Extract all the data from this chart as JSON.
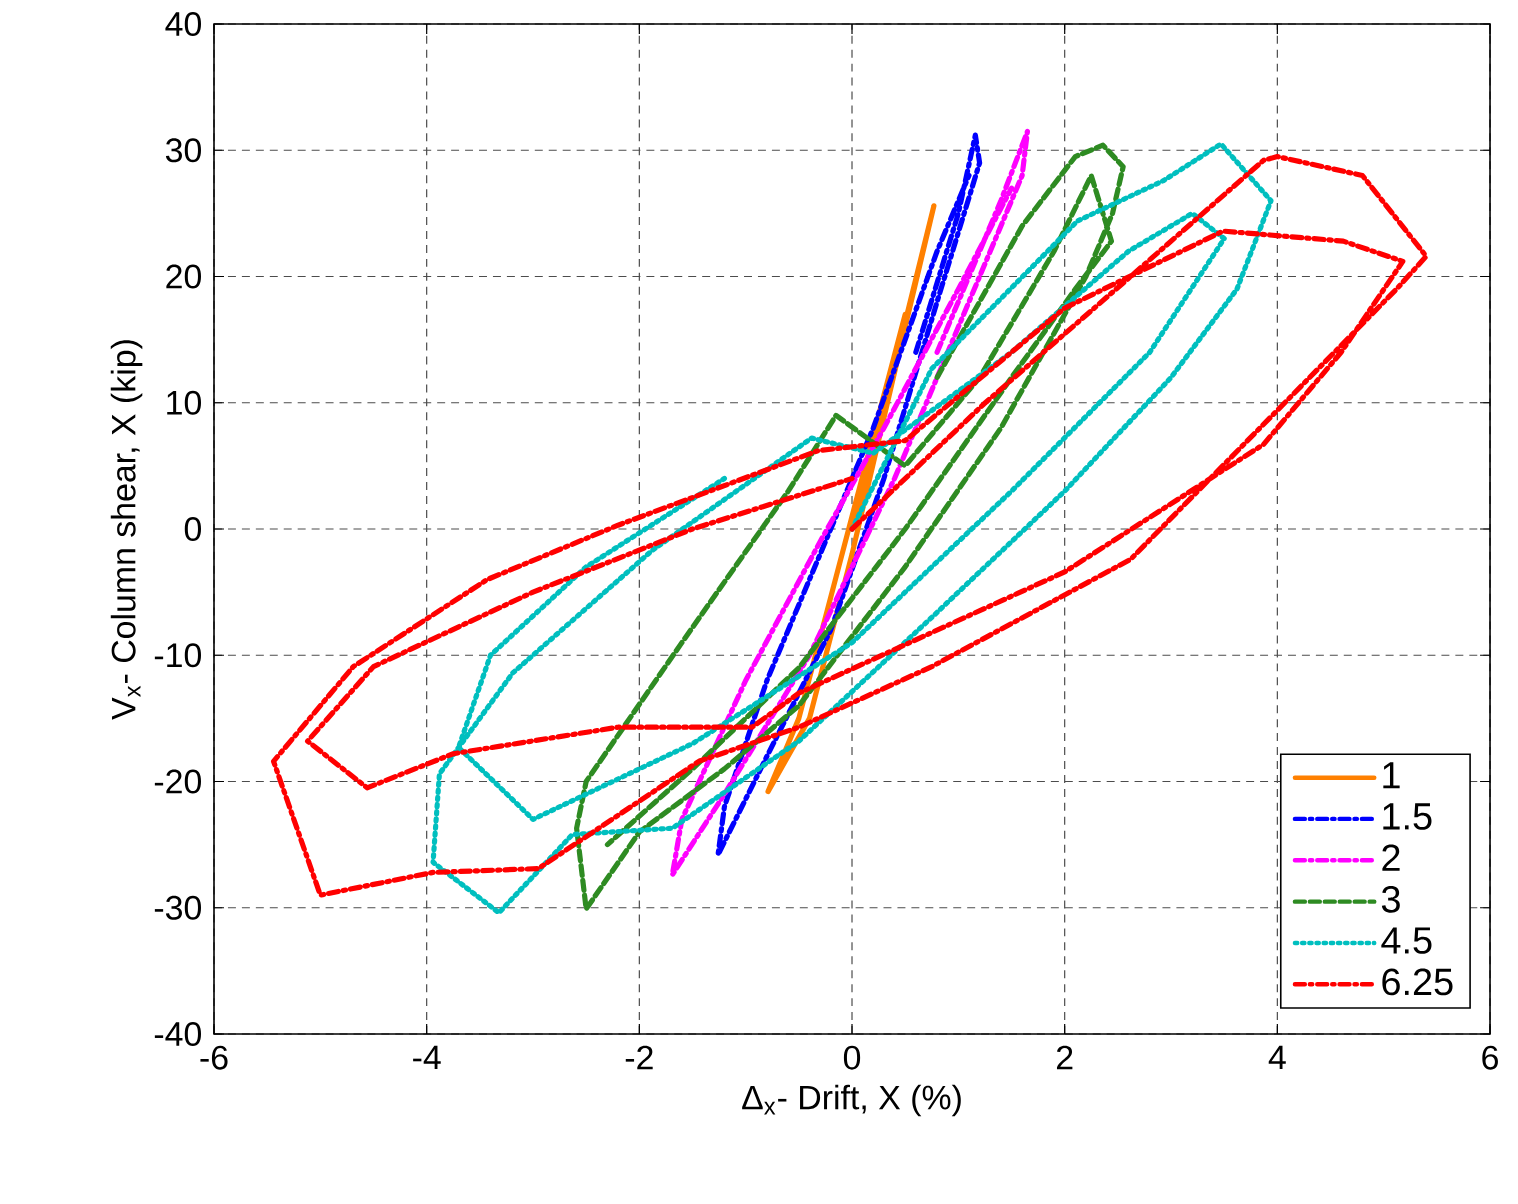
{
  "chart_data": {
    "type": "line",
    "xlabel": "Δ$_{x}$- Drift, X (%)",
    "ylabel": "V$_{x}$- Column shear, X (kip)",
    "xlim": [
      -6,
      6
    ],
    "ylim": [
      -40,
      40
    ],
    "xticks": [
      -6,
      -4,
      -2,
      0,
      2,
      4,
      6
    ],
    "yticks": [
      -40,
      -30,
      -20,
      -10,
      0,
      10,
      20,
      30,
      40
    ],
    "grid": true,
    "legend": "bottom right",
    "series": [
      {
        "name": "1",
        "color": "#ff8000",
        "line_style": "solid",
        "x": [
          0,
          0.4,
          0.77,
          0.5,
          0,
          -0.4,
          -0.79,
          -0.5,
          0,
          0.5
        ],
        "values": [
          0,
          13,
          25.6,
          16,
          -2,
          -15,
          -20.8,
          -15,
          1,
          17
        ]
      },
      {
        "name": "1.5",
        "color": "#0000ff",
        "line_style": "dashdot",
        "x": [
          0.6,
          1.0,
          1.16,
          1.2,
          0.8,
          0.3,
          -0.2,
          -0.8,
          -1.26,
          -1.2,
          -0.8,
          -0.3,
          0.2,
          0.8,
          1.1
        ],
        "values": [
          14,
          25,
          31.2,
          29,
          18,
          4,
          -8,
          -18,
          -25.8,
          -22,
          -12,
          -2,
          8,
          22,
          28
        ]
      },
      {
        "name": "2",
        "color": "#ff00ff",
        "line_style": "dashdot",
        "x": [
          0.8,
          1.4,
          1.65,
          1.6,
          1.1,
          0.4,
          -0.4,
          -1.2,
          -1.69,
          -1.6,
          -1.0,
          -0.3,
          0.3,
          1.0,
          1.5
        ],
        "values": [
          14,
          26,
          31.5,
          28,
          18,
          4,
          -10,
          -21,
          -27.4,
          -23,
          -12,
          -1,
          8,
          19,
          27
        ]
      },
      {
        "name": "3",
        "color": "#2e8b22",
        "line_style": "dashed",
        "x": [
          0.8,
          1.6,
          2.1,
          2.36,
          2.55,
          2.45,
          2.2,
          1.4,
          0.5,
          -0.5,
          -1.2,
          -2.0,
          -2.5,
          -2.59,
          -2.5,
          -1.6,
          -0.6,
          -0.15,
          0.5,
          1.2,
          1.9,
          2.25,
          2.44,
          2.1,
          1.5,
          0.5,
          -0.5,
          -1.5,
          -2.3
        ],
        "values": [
          12,
          24,
          29.5,
          30.4,
          28.7,
          25,
          20,
          8,
          -3,
          -14,
          -19,
          -24,
          -30.1,
          -23.7,
          -20,
          -9,
          3,
          9,
          5,
          12,
          22,
          28,
          22.8,
          19,
          12,
          0,
          -11,
          -19,
          -25
        ]
      },
      {
        "name": "4.5",
        "color": "#00bfbf",
        "line_style": "dotted",
        "x": [
          0,
          0.75,
          2.12,
          2.93,
          3.47,
          3.94,
          3.62,
          3.0,
          2.0,
          0.75,
          -0.5,
          -1.69,
          -2.63,
          -3.32,
          -3.94,
          -3.88,
          -3.19,
          -1.88,
          -0.38,
          0.2,
          1.5,
          2.6,
          3.2,
          3.5,
          2.8,
          1.5,
          0,
          -1.5,
          -3.0,
          -3.7,
          -3.4,
          -2.5,
          -1.2
        ],
        "values": [
          0,
          12.7,
          24.4,
          27.6,
          30.5,
          26,
          19,
          12,
          3,
          -7,
          -16.8,
          -23.7,
          -24.2,
          -30.4,
          -26.4,
          -19.4,
          -11.4,
          -1.7,
          7.2,
          6,
          14,
          22,
          25,
          23,
          14,
          3,
          -9,
          -17,
          -23,
          -17.3,
          -10,
          -3,
          4
        ]
      },
      {
        "name": "6.25",
        "color": "#ff0000",
        "line_style": "dashdot",
        "x": [
          0,
          1.24,
          2.62,
          3.87,
          4.0,
          4.8,
          5.4,
          5.12,
          4.0,
          2.62,
          0.75,
          -0.5,
          -1.44,
          -2.95,
          -3.94,
          -5.0,
          -5.44,
          -4.69,
          -3.43,
          -2.2,
          -0.32,
          0.5,
          2.0,
          3.49,
          4.62,
          5.18,
          4.6,
          3.87,
          2.0,
          -0.5,
          -0.94,
          -2.2,
          -3.75,
          -4.56,
          -5.12,
          -4.5,
          -3.0,
          -1.5,
          0
        ],
        "values": [
          0,
          9.9,
          20,
          29.2,
          29.5,
          28,
          21.6,
          19,
          9.4,
          -2.4,
          -10.9,
          -15.7,
          -18.4,
          -26.9,
          -27.2,
          -29,
          -18.4,
          -10.9,
          -4,
          0.3,
          6.2,
          7,
          17.5,
          23.6,
          22.8,
          21.2,
          14,
          6.7,
          -3.4,
          -13,
          -15.7,
          -15.7,
          -17.8,
          -20.5,
          -16.8,
          -10.9,
          -5,
          0,
          4
        ]
      }
    ]
  }
}
